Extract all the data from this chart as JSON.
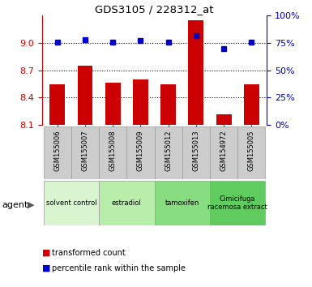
{
  "title": "GDS3105 / 228312_at",
  "samples": [
    "GSM155006",
    "GSM155007",
    "GSM155008",
    "GSM155009",
    "GSM155012",
    "GSM155013",
    "GSM154972",
    "GSM155005"
  ],
  "red_values": [
    8.55,
    8.75,
    8.56,
    8.6,
    8.55,
    9.25,
    8.22,
    8.55
  ],
  "blue_values": [
    76,
    78,
    76,
    77,
    76,
    82,
    70,
    76
  ],
  "ylim_left": [
    8.1,
    9.3
  ],
  "ylim_right": [
    0,
    100
  ],
  "yticks_left": [
    8.1,
    8.4,
    8.7,
    9.0
  ],
  "yticks_right": [
    0,
    25,
    50,
    75,
    100
  ],
  "groups": [
    {
      "label": "solvent control",
      "span": [
        0,
        1
      ],
      "color": "#d8f5d0"
    },
    {
      "label": "estradiol",
      "span": [
        2,
        3
      ],
      "color": "#b8edac"
    },
    {
      "label": "tamoxifen",
      "span": [
        4,
        5
      ],
      "color": "#88dd80"
    },
    {
      "label": "Cimicifuga\nracemosa extract",
      "span": [
        6,
        7
      ],
      "color": "#60cc60"
    }
  ],
  "agent_label": "agent",
  "red_color": "#cc0000",
  "blue_color": "#0000cc",
  "grid_color": "#000000",
  "bar_width": 0.55,
  "left_tick_color": "#cc0000",
  "right_tick_color": "#0000cc",
  "sample_bg_color": "#cccccc",
  "sample_border_color": "#999999"
}
